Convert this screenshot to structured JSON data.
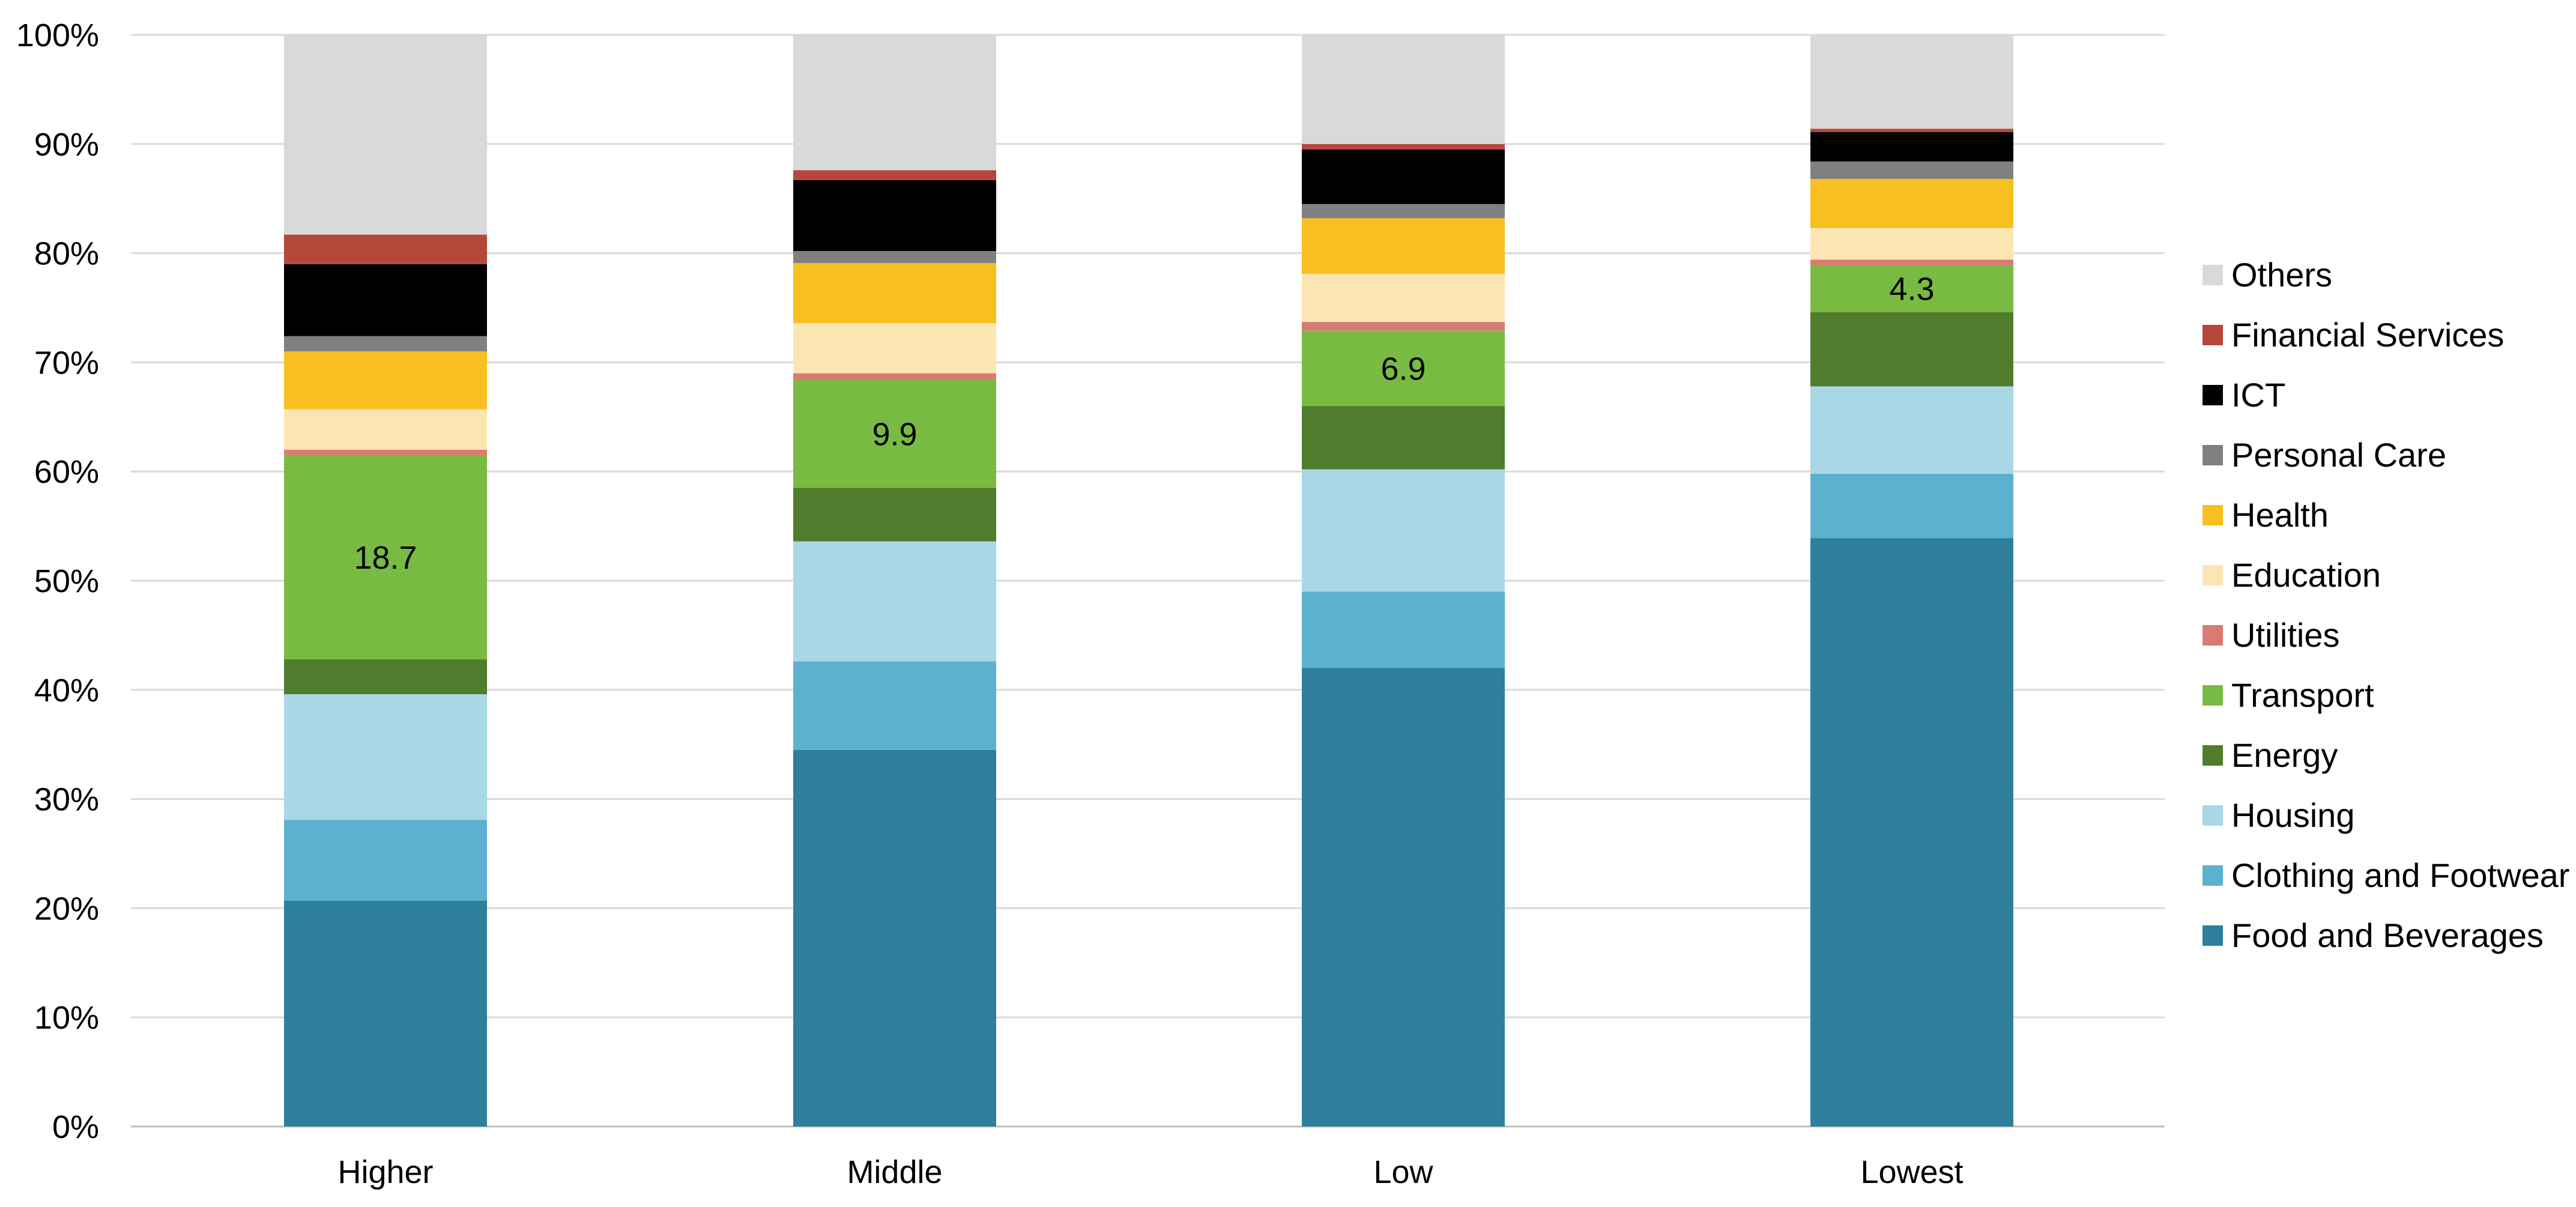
{
  "chart_data": {
    "type": "bar",
    "stacked": true,
    "normalized_percent": true,
    "title": "",
    "xlabel": "",
    "ylabel": "",
    "ylim": [
      0,
      100
    ],
    "y_ticks": [
      "0%",
      "10%",
      "20%",
      "30%",
      "40%",
      "50%",
      "60%",
      "70%",
      "80%",
      "90%",
      "100%"
    ],
    "grid": true,
    "legend_position": "right",
    "categories": [
      "Higher",
      "Middle",
      "Low",
      "Lowest"
    ],
    "series": [
      {
        "name": "Food and Beverages",
        "color": "#2e7f9b",
        "values": [
          20.7,
          34.5,
          42.0,
          53.9
        ]
      },
      {
        "name": "Clothing and Footwear",
        "color": "#5bb1cf",
        "values": [
          7.4,
          8.1,
          7.0,
          5.9
        ]
      },
      {
        "name": "Housing",
        "color": "#a9d7e6",
        "values": [
          11.5,
          11.0,
          11.2,
          8.0
        ]
      },
      {
        "name": "Energy",
        "color": "#4f7d2d",
        "values": [
          3.2,
          4.9,
          5.8,
          6.8
        ]
      },
      {
        "name": "Transport",
        "color": "#79bb42",
        "values": [
          18.7,
          9.9,
          6.9,
          4.3
        ]
      },
      {
        "name": "Utilities",
        "color": "#d87b70",
        "values": [
          0.5,
          0.6,
          0.8,
          0.5
        ]
      },
      {
        "name": "Education",
        "color": "#fbe6b2",
        "values": [
          3.7,
          4.6,
          4.4,
          2.9
        ]
      },
      {
        "name": "Health",
        "color": "#f7c020",
        "values": [
          5.3,
          5.5,
          5.1,
          4.5
        ]
      },
      {
        "name": "Personal Care",
        "color": "#808080",
        "values": [
          1.4,
          1.1,
          1.3,
          1.6
        ]
      },
      {
        "name": "ICT",
        "color": "#000000",
        "values": [
          6.6,
          6.5,
          5.0,
          2.7
        ]
      },
      {
        "name": "Financial Services",
        "color": "#b5473a",
        "values": [
          2.7,
          0.9,
          0.5,
          0.3
        ]
      },
      {
        "name": "Others",
        "color": "#d9d9d9",
        "values": [
          18.3,
          12.4,
          10.0,
          8.6
        ]
      }
    ],
    "data_labels": [
      {
        "series": "Transport",
        "category": "Higher",
        "text": "18.7"
      },
      {
        "series": "Transport",
        "category": "Middle",
        "text": "9.9"
      },
      {
        "series": "Transport",
        "category": "Low",
        "text": "6.9"
      },
      {
        "series": "Transport",
        "category": "Lowest",
        "text": "4.3"
      }
    ]
  }
}
